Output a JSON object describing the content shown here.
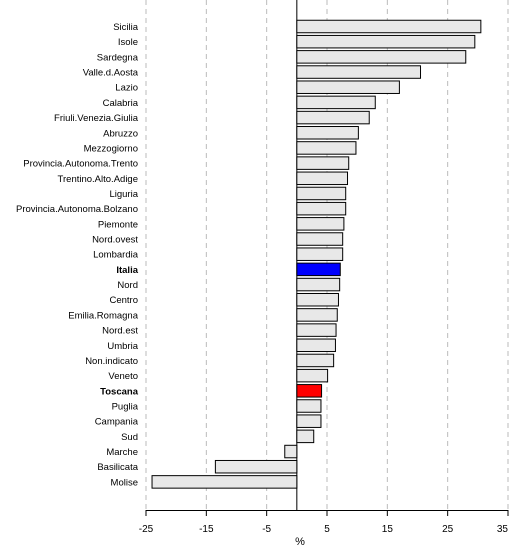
{
  "chart_data": {
    "type": "bar",
    "orientation": "horizontal",
    "categories": [
      "Sicilia",
      "Isole",
      "Sardegna",
      "Valle.d.Aosta",
      "Lazio",
      "Calabria",
      "Friuli.Venezia.Giulia",
      "Abruzzo",
      "Mezzogiorno",
      "Provincia.Autonoma.Trento",
      "Trentino.Alto.Adige",
      "Liguria",
      "Provincia.Autonoma.Bolzano",
      "Piemonte",
      "Nord.ovest",
      "Lombardia",
      "Italia",
      "Nord",
      "Centro",
      "Emilia.Romagna",
      "Nord.est",
      "Umbria",
      "Non.indicato",
      "Veneto",
      "Toscana",
      "Puglia",
      "Campania",
      "Sud",
      "Marche",
      "Basilicata",
      "Molise"
    ],
    "values": [
      30.5,
      29.5,
      28,
      20.5,
      17,
      13,
      12,
      10.2,
      9.8,
      8.6,
      8.4,
      8.1,
      8.1,
      7.8,
      7.6,
      7.6,
      7.2,
      7.1,
      6.9,
      6.7,
      6.5,
      6.4,
      6.1,
      5.1,
      4.1,
      4.0,
      4.0,
      2.8,
      -2.0,
      -13.5,
      -24.0
    ],
    "xlabel": "%",
    "ylabel": "",
    "title": "",
    "xlim": [
      -25,
      35
    ],
    "xticks": [
      "-25",
      "-15",
      "-5",
      "5",
      "15",
      "25",
      "35"
    ],
    "xtick_values": [
      -25,
      -15,
      -5,
      5,
      15,
      25,
      35
    ],
    "grid": "vertical dashed",
    "highlight": {
      "Italia": {
        "fill": "#0000ff",
        "label_color": "#1c1cc8"
      },
      "Toscana": {
        "fill": "#ff0000",
        "label_color": "#cc0000"
      }
    },
    "default_bar_fill": "#e8e8e8",
    "bar_stroke": "#000000",
    "grid_color": "#bbbbbb"
  }
}
